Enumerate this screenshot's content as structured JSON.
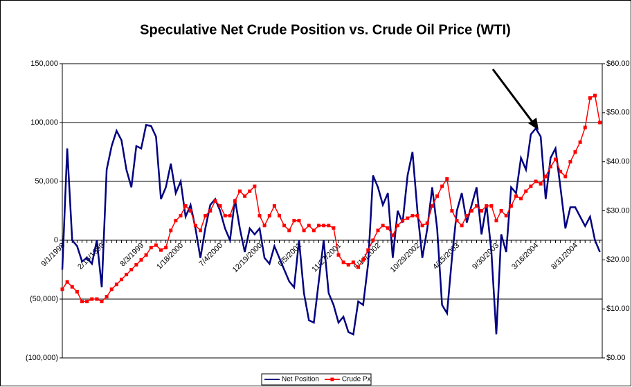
{
  "chart_data": {
    "type": "line",
    "title": "Speculative Net Crude Position vs. Crude Oil Price (WTI)",
    "categories": [
      "9/1/1998",
      null,
      null,
      null,
      null,
      null,
      null,
      null,
      "2/16/1999",
      null,
      null,
      null,
      null,
      null,
      null,
      null,
      "8/3/1999",
      null,
      null,
      null,
      null,
      null,
      null,
      null,
      "1/18/2000",
      null,
      null,
      null,
      null,
      null,
      null,
      null,
      "7/4/2000",
      null,
      null,
      null,
      null,
      null,
      null,
      null,
      "12/19/2000",
      null,
      null,
      null,
      null,
      null,
      null,
      null,
      "6/5/2001",
      null,
      null,
      null,
      null,
      null,
      null,
      null,
      "11/27/2001",
      null,
      null,
      null,
      null,
      null,
      null,
      null,
      "5/14/2002",
      null,
      null,
      null,
      null,
      null,
      null,
      null,
      "10/29/2002",
      null,
      null,
      null,
      null,
      null,
      null,
      null,
      "4/15/2003",
      null,
      null,
      null,
      null,
      null,
      null,
      null,
      "9/30/2003",
      null,
      null,
      null,
      null,
      null,
      null,
      null,
      "3/16/2004",
      null,
      null,
      null,
      null,
      null,
      null,
      null,
      "8/31/2004",
      null,
      null,
      null,
      null,
      null
    ],
    "series": [
      {
        "name": "Net Position",
        "color": "#000080",
        "axis": "y",
        "marker": false,
        "values": [
          -25000,
          78000,
          0,
          -5000,
          -18000,
          -15000,
          -20000,
          0,
          -40000,
          60000,
          80000,
          93000,
          85000,
          60000,
          45000,
          80000,
          78000,
          98000,
          97000,
          88000,
          35000,
          45000,
          65000,
          40000,
          50000,
          20000,
          30000,
          10000,
          -15000,
          10000,
          30000,
          35000,
          25000,
          10000,
          0,
          35000,
          10000,
          -10000,
          10000,
          5000,
          10000,
          -15000,
          -20000,
          -5000,
          -15000,
          -25000,
          -35000,
          -40000,
          0,
          -45000,
          -68000,
          -70000,
          -35000,
          0,
          -45000,
          -55000,
          -70000,
          -65000,
          -78000,
          -80000,
          -52000,
          -55000,
          -20000,
          55000,
          45000,
          30000,
          40000,
          -15000,
          25000,
          15000,
          55000,
          75000,
          25000,
          -15000,
          10000,
          45000,
          10000,
          -55000,
          -62000,
          -15000,
          25000,
          40000,
          15000,
          30000,
          45000,
          5000,
          30000,
          -10000,
          -80000,
          5000,
          -10000,
          45000,
          40000,
          70000,
          60000,
          90000,
          95000,
          88000,
          35000,
          70000,
          78000,
          45000,
          10000,
          28000,
          28000,
          20000,
          12000,
          20000,
          0,
          -10000
        ]
      },
      {
        "name": "Crude Px",
        "color": "#ff0000",
        "axis": "y2",
        "marker": true,
        "values": [
          14,
          15.5,
          14.5,
          13.5,
          11.5,
          11.5,
          12,
          12,
          11.5,
          12.5,
          14,
          15,
          16,
          17,
          18,
          19,
          20,
          21,
          22.5,
          23,
          22,
          22.5,
          26,
          28,
          29,
          31,
          30,
          27,
          26,
          29,
          30,
          32,
          31,
          29,
          29,
          32,
          34,
          33,
          34,
          35,
          29,
          27,
          29,
          31,
          29,
          27,
          26,
          28,
          28,
          26,
          27,
          26,
          27,
          27,
          27,
          26.5,
          21,
          19.5,
          19,
          19.5,
          18.5,
          20,
          22,
          24,
          26,
          27,
          26.5,
          25,
          27,
          28,
          28.5,
          29,
          29,
          27,
          27.5,
          31,
          33,
          35,
          36.5,
          30,
          28,
          27,
          29,
          30,
          31,
          30,
          31,
          31,
          28,
          30,
          29,
          31,
          33,
          32.5,
          34,
          35,
          36,
          35.5,
          37,
          39,
          40.5,
          38,
          37,
          40,
          42,
          44,
          47,
          53,
          53.5,
          48
        ]
      }
    ],
    "ylim": [
      -100000,
      150000
    ],
    "yticks": [
      {
        "value": 150000,
        "label": "150,000"
      },
      {
        "value": 100000,
        "label": "100,000"
      },
      {
        "value": 50000,
        "label": "50,000"
      },
      0,
      {
        "value": -50000,
        "label": "(50,000)"
      },
      {
        "value": -100000,
        "label": "(100,000)"
      }
    ],
    "y2lim": [
      0,
      60
    ],
    "y2ticks": [
      {
        "value": 60,
        "label": "$60.00"
      },
      {
        "value": 50,
        "label": "$50.00"
      },
      {
        "value": 40,
        "label": "$40.00"
      },
      {
        "value": 30,
        "label": "$30.00"
      },
      {
        "value": 20,
        "label": "$20.00"
      },
      {
        "value": 10,
        "label": "$10.00"
      },
      {
        "value": 0,
        "label": "$0.00"
      }
    ],
    "grid": true,
    "legend": "bottom"
  }
}
